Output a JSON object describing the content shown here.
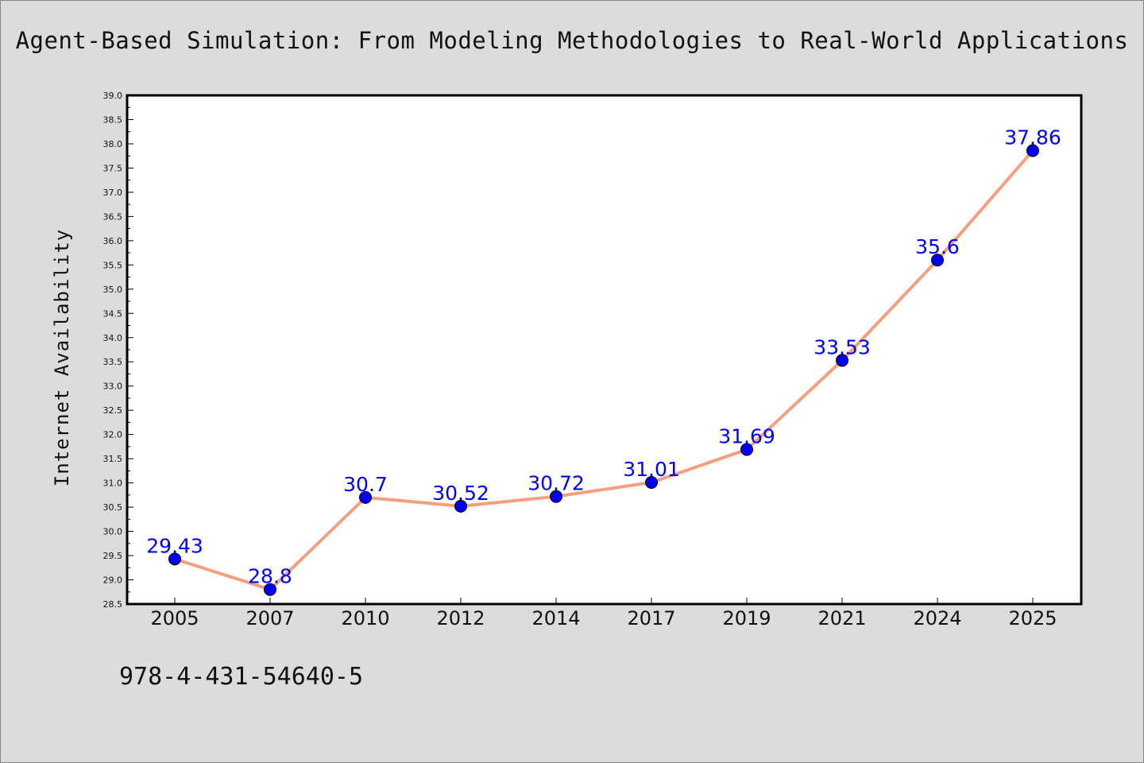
{
  "chart_data": {
    "type": "line",
    "title": "Agent-Based Simulation: From Modeling Methodologies to Real-World Applications",
    "xlabel": "",
    "ylabel": "Internet Availability",
    "categories": [
      "2005",
      "2007",
      "2010",
      "2012",
      "2014",
      "2017",
      "2019",
      "2021",
      "2024",
      "2025"
    ],
    "series": [
      {
        "values": [
          29.43,
          28.8,
          30.7,
          30.52,
          30.72,
          31.01,
          31.69,
          33.53,
          35.6,
          37.86
        ],
        "data_labels": [
          "29.43",
          "28.8",
          "30.7",
          "30.52",
          "30.72",
          "31.01",
          "31.69",
          "33.53",
          "35.6",
          "37.86"
        ]
      }
    ],
    "ylim": [
      28.5,
      39.0
    ],
    "yticks": [
      "28.5",
      "29.0",
      "29.5",
      "30.0",
      "30.5",
      "31.0",
      "31.5",
      "32.0",
      "32.5",
      "33.0",
      "33.5",
      "34.0",
      "34.5",
      "35.0",
      "35.5",
      "36.0",
      "36.5",
      "37.0",
      "37.5",
      "38.0",
      "38.5",
      "39.0"
    ],
    "grid": false,
    "legend": "none",
    "colors": {
      "line": "#f4a080",
      "marker": "#0000ee",
      "label": "#0000ee",
      "background": "#dcdcdc",
      "plot_area": "#ffffff"
    }
  },
  "footer": {
    "isbn": "978-4-431-54640-5"
  }
}
